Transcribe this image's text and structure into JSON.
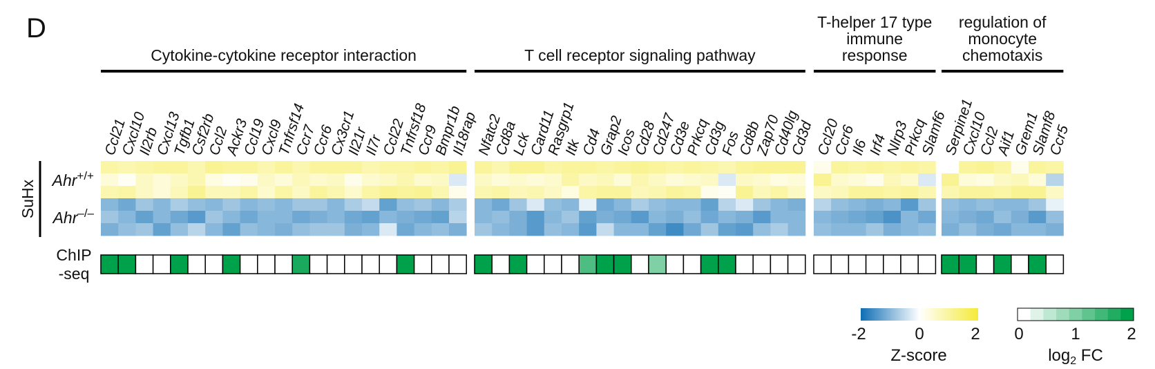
{
  "panel_label": "D",
  "side_label": "SuHx",
  "row_groups": [
    {
      "base": "Ahr",
      "sup": "+/+"
    },
    {
      "base": "Ahr",
      "sup": "–/–"
    }
  ],
  "chip_label_lines": [
    "ChIP",
    "-seq"
  ],
  "chart_data": {
    "type": "heatmap",
    "groups": [
      {
        "title_lines": [
          "Cytokine-cytokine receptor interaction"
        ],
        "genes": [
          "Ccl21",
          "Cxcl10",
          "Il2rb",
          "Cxcl13",
          "Tgfb1",
          "Csf2rb",
          "Ccl2",
          "Ackr3",
          "Ccl19",
          "Cxcl9",
          "Tnfrsf14",
          "Ccr7",
          "Ccr6",
          "Cx3cr1",
          "Il21r",
          "Il7r",
          "Ccl22",
          "Tnfrsf18",
          "Ccr9",
          "Bmpr1b",
          "Il18rap"
        ],
        "zscores": [
          [
            0.9,
            0.8,
            0.9,
            1.0,
            1.0,
            0.8,
            1.1,
            1.0,
            1.0,
            0.8,
            1.0,
            0.8,
            1.0,
            1.0,
            1.0,
            0.8,
            0.9,
            0.9,
            1.0,
            0.9,
            1.1
          ],
          [
            0.4,
            0.1,
            0.6,
            0.4,
            0.6,
            0.8,
            0.3,
            0.1,
            0.2,
            0.6,
            0.4,
            0.7,
            0.5,
            0.6,
            0.2,
            0.5,
            0.6,
            0.8,
            0.5,
            0.6,
            -0.3
          ],
          [
            0.8,
            0.9,
            0.6,
            0.4,
            0.7,
            1.1,
            0.7,
            0.7,
            0.9,
            0.5,
            0.9,
            0.6,
            1.0,
            0.8,
            0.5,
            0.9,
            1.1,
            1.0,
            1.1,
            0.8,
            0.2
          ],
          [
            -1.0,
            -1.2,
            -0.8,
            -1.0,
            -0.7,
            -0.9,
            -1.0,
            -0.8,
            -1.0,
            -0.9,
            -1.0,
            -0.8,
            -0.8,
            -1.0,
            -0.7,
            -0.5,
            -1.3,
            -0.9,
            -0.8,
            -1.0,
            -0.7
          ],
          [
            -0.8,
            -1.0,
            -1.3,
            -1.0,
            -1.2,
            -1.4,
            -0.8,
            -1.0,
            -1.2,
            -1.0,
            -1.0,
            -1.2,
            -1.1,
            -1.0,
            -1.2,
            -1.3,
            -1.0,
            -1.1,
            -1.2,
            -1.3,
            -0.6
          ],
          [
            -1.1,
            -0.9,
            -0.8,
            -1.3,
            -0.9,
            -0.6,
            -1.0,
            -1.3,
            -0.9,
            -1.0,
            -1.1,
            -0.9,
            -0.8,
            -0.8,
            -1.1,
            -1.0,
            -0.3,
            -1.2,
            -1.0,
            -0.9,
            -1.1
          ]
        ],
        "chip_log2fc": [
          2,
          2,
          0,
          0,
          2,
          0,
          0,
          2,
          0,
          0,
          0,
          1.8,
          0,
          0,
          0,
          0,
          0,
          2,
          0,
          0,
          0
        ]
      },
      {
        "title_lines": [
          "T cell receptor signaling pathway"
        ],
        "genes": [
          "Nfatc2",
          "Cd8a",
          "Lck",
          "Card11",
          "Rasgrp1",
          "Itk",
          "Cd4",
          "Grap2",
          "Icos",
          "Cd28",
          "Cd247",
          "Cd3e",
          "Prkcq",
          "Cd3g",
          "Fos",
          "Cd8b",
          "Zap70",
          "Cd40lg",
          "Cd3d"
        ],
        "zscores": [
          [
            1.0,
            0.8,
            1.1,
            1.1,
            0.9,
            1.0,
            1.0,
            0.9,
            1.0,
            1.1,
            1.0,
            0.9,
            1.0,
            0.9,
            0.8,
            1.0,
            1.1,
            1.1,
            1.1
          ],
          [
            0.6,
            0.4,
            0.5,
            0.4,
            0.5,
            0.9,
            0.6,
            0.7,
            0.4,
            0.8,
            0.6,
            0.4,
            0.5,
            0.6,
            -0.3,
            0.6,
            0.5,
            0.3,
            0.4
          ],
          [
            0.8,
            0.9,
            0.7,
            0.8,
            0.6,
            0.3,
            0.9,
            1.0,
            1.0,
            0.7,
            0.8,
            1.0,
            0.9,
            0.2,
            0.1,
            1.1,
            0.7,
            0.9,
            0.6
          ],
          [
            -1.0,
            -1.2,
            -0.8,
            -0.3,
            -0.9,
            -1.0,
            -0.2,
            -1.2,
            -1.0,
            -0.7,
            -0.9,
            -1.0,
            -1.0,
            -1.3,
            -0.6,
            -0.3,
            -0.8,
            -1.0,
            -1.1
          ],
          [
            -1.0,
            -0.9,
            -1.1,
            -1.4,
            -1.0,
            -0.8,
            -1.3,
            -1.1,
            -1.2,
            -1.4,
            -1.0,
            -1.1,
            -0.9,
            -1.2,
            -1.0,
            -1.1,
            -1.4,
            -1.0,
            -1.0
          ],
          [
            -0.8,
            -1.0,
            -1.1,
            -1.4,
            -0.9,
            -1.0,
            -1.4,
            -0.5,
            -1.0,
            -1.0,
            -1.3,
            -1.6,
            -1.2,
            -0.8,
            -1.3,
            -1.4,
            -0.9,
            -0.7,
            -1.0
          ]
        ],
        "chip_log2fc": [
          2,
          0,
          2,
          0,
          0,
          0,
          1.4,
          2,
          2,
          0,
          1.0,
          0,
          0,
          2,
          2,
          0,
          0,
          0,
          0
        ]
      },
      {
        "title_lines": [
          "T-helper 17 type",
          "immune",
          "response"
        ],
        "genes": [
          "Ccl20",
          "Ccr6",
          "Il6",
          "Irf4",
          "Nlrp3",
          "Prkcq",
          "Slamf6"
        ],
        "zscores": [
          [
            0.2,
            1.0,
            0.9,
            1.0,
            0.9,
            1.0,
            0.9
          ],
          [
            1.1,
            0.5,
            0.4,
            0.2,
            0.7,
            0.5,
            -0.3
          ],
          [
            0.6,
            0.7,
            1.0,
            1.0,
            0.9,
            1.0,
            0.8
          ],
          [
            -0.6,
            -0.9,
            -1.0,
            -1.1,
            -1.0,
            -1.4,
            -0.8
          ],
          [
            -1.0,
            -1.1,
            -1.2,
            -1.3,
            -1.5,
            -1.0,
            -1.2
          ],
          [
            -0.9,
            -1.0,
            -1.0,
            -0.8,
            -1.1,
            -1.0,
            -0.9
          ]
        ],
        "chip_log2fc": [
          0,
          0,
          0,
          0,
          0,
          0,
          0
        ]
      },
      {
        "title_lines": [
          "regulation of",
          "monocyte",
          "chemotaxis"
        ],
        "genes": [
          "Serpine1",
          "Cxcl10",
          "Ccl2",
          "Aif1",
          "Grem1",
          "Slamf8",
          "Ccr5"
        ],
        "zscores": [
          [
            0.0,
            1.0,
            1.1,
            0.9,
            0.2,
            1.0,
            0.9
          ],
          [
            1.1,
            0.4,
            0.3,
            0.6,
            0.7,
            0.4,
            -0.6
          ],
          [
            0.8,
            1.0,
            1.0,
            0.9,
            1.1,
            1.1,
            0.6
          ],
          [
            -0.9,
            -1.0,
            -0.9,
            -1.0,
            -1.0,
            -0.8,
            -0.2
          ],
          [
            -1.0,
            -1.1,
            -1.2,
            -0.9,
            -1.1,
            -1.4,
            -0.9
          ],
          [
            -1.1,
            -0.9,
            -1.1,
            -1.2,
            -1.0,
            -1.0,
            -1.1
          ]
        ],
        "chip_log2fc": [
          2,
          2,
          0,
          2,
          0,
          2,
          0
        ]
      }
    ],
    "zscore_scale": {
      "min": -2,
      "max": 2,
      "ticks": [
        "-2",
        "0",
        "2"
      ],
      "title": "Z-score",
      "colors": [
        "#0f6eb4",
        "#ffffff",
        "#f5ea3a"
      ]
    },
    "fc_scale": {
      "min": 0,
      "max": 2,
      "ticks": [
        "0",
        "1",
        "2"
      ],
      "title_base": "log",
      "title_sub": "2",
      "title_rest": " FC",
      "colors": [
        "#ffffff",
        "#00a14b"
      ]
    }
  }
}
